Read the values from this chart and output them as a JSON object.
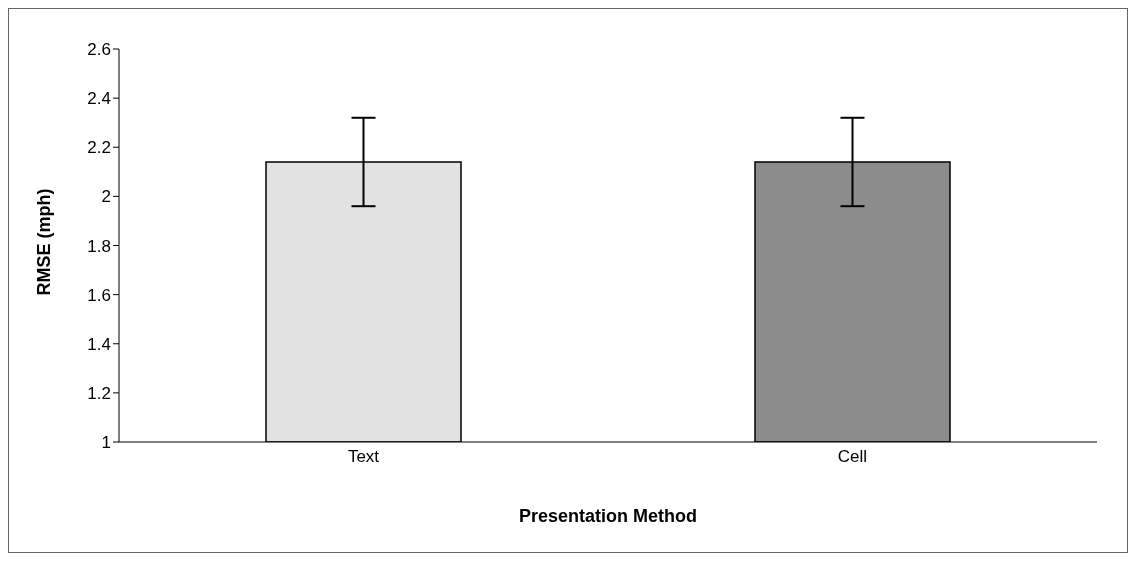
{
  "chart_data": {
    "type": "bar",
    "xlabel": "Presentation Method",
    "ylabel": "RMSE (mph)",
    "categories": [
      "Text",
      "Cell"
    ],
    "values": [
      2.14,
      2.14
    ],
    "errors": [
      0.18,
      0.18
    ],
    "colors": [
      "#e2e2e2",
      "#8c8c8c"
    ],
    "ylim": [
      1,
      2.6
    ],
    "yticks": [
      1,
      1.2,
      1.4,
      1.6,
      1.8,
      2,
      2.2,
      2.4,
      2.6
    ],
    "grid": false
  }
}
